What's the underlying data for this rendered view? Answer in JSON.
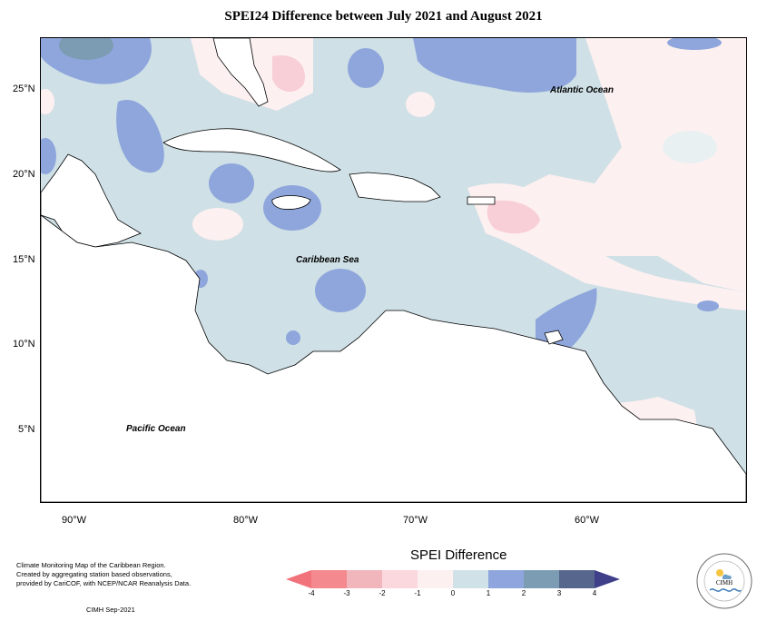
{
  "title": "SPEI24 Difference between July 2021 and August 2021",
  "map": {
    "latitude_ticks": [
      "25°N",
      "20°N",
      "15°N",
      "10°N",
      "5°N"
    ],
    "longitude_ticks": [
      "90°W",
      "80°W",
      "70°W",
      "60°W"
    ],
    "labels": {
      "atlantic": "Atlantic Ocean",
      "caribbean": "Caribbean Sea",
      "pacific": "Pacific Ocean"
    },
    "colors": {
      "ocean_base": "#cfe0e6",
      "land": "#ffffff",
      "positive_1_2": "#8ea6dc",
      "negative_0_1": "#fce8ea",
      "negative_1_2": "#f8cfd6"
    }
  },
  "legend": {
    "title": "SPEI Difference",
    "tick_labels": [
      "-4",
      "-3",
      "-2",
      "-1",
      "0",
      "1",
      "2",
      "3",
      "4"
    ],
    "class_colors": [
      "#f48a90",
      "#f0b6bc",
      "#fbd8dd",
      "#fdf0f0",
      "#d0e1e7",
      "#8ea5dd",
      "#7c9cb4",
      "#56668c"
    ],
    "under_color": "#f1727a",
    "over_color": "#3f3f8a"
  },
  "footer": {
    "note_lines": [
      "Climate Monitoring Map of the Caribbean Region.",
      "Created by aggregating station based observations,",
      "provided by CariCOF, with NCEP/NCAR Reanalysis Data."
    ],
    "credit": "CIMH Sep-2021"
  },
  "logo": {
    "text": "CIMH"
  }
}
